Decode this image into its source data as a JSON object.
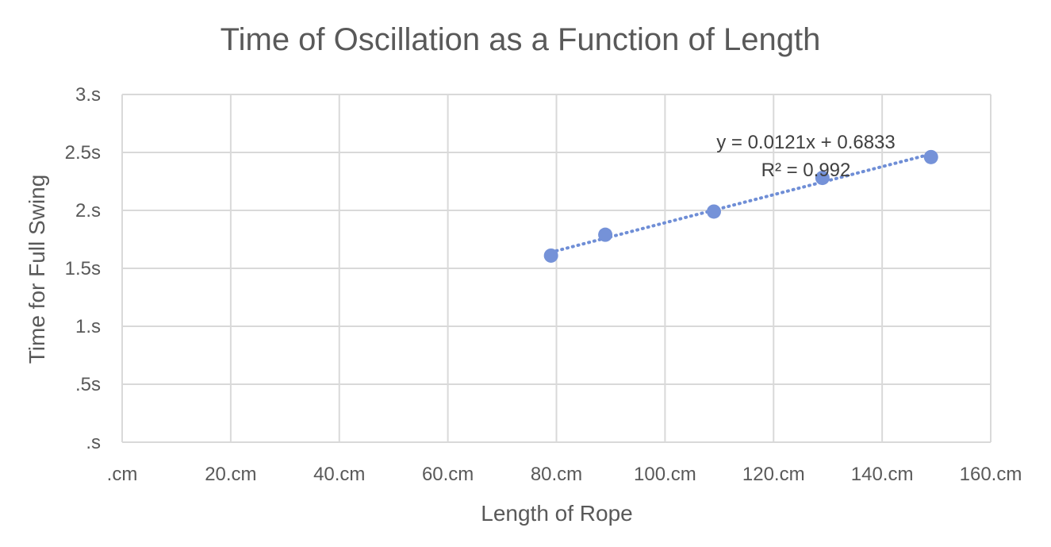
{
  "chart_data": {
    "type": "scatter",
    "title": "Time of Oscillation as a Function of Length",
    "xlabel": "Length of Rope",
    "ylabel": "Time for Full Swing",
    "xlim": [
      0,
      160
    ],
    "ylim": [
      0,
      3
    ],
    "x_ticks": [
      0,
      20,
      40,
      60,
      80,
      100,
      120,
      140,
      160
    ],
    "y_ticks": [
      0,
      0.5,
      1,
      1.5,
      2,
      2.5,
      3
    ],
    "x_tick_labels": [
      ".cm",
      "20.cm",
      "40.cm",
      "60.cm",
      "80.cm",
      "100.cm",
      "120.cm",
      "140.cm",
      "160.cm"
    ],
    "y_tick_labels": [
      ".s",
      ".5s",
      "1.s",
      "1.5s",
      "2.s",
      "2.5s",
      "3.s"
    ],
    "grid": true,
    "legend": "none",
    "colors": {
      "points": "#7592d8",
      "trendline": "#6f8ed6",
      "grid": "#d9d9d9",
      "text": "#595959"
    },
    "series": [
      {
        "x": [
          79,
          89,
          109,
          129,
          149
        ],
        "y": [
          1.61,
          1.79,
          1.99,
          2.28,
          2.46
        ]
      }
    ],
    "trendline": {
      "slope": 0.0121,
      "intercept": 0.6833,
      "x_start": 79,
      "x_end": 149,
      "equation": "y = 0.0121x + 0.6833",
      "r_squared": "R² = 0.992"
    }
  }
}
